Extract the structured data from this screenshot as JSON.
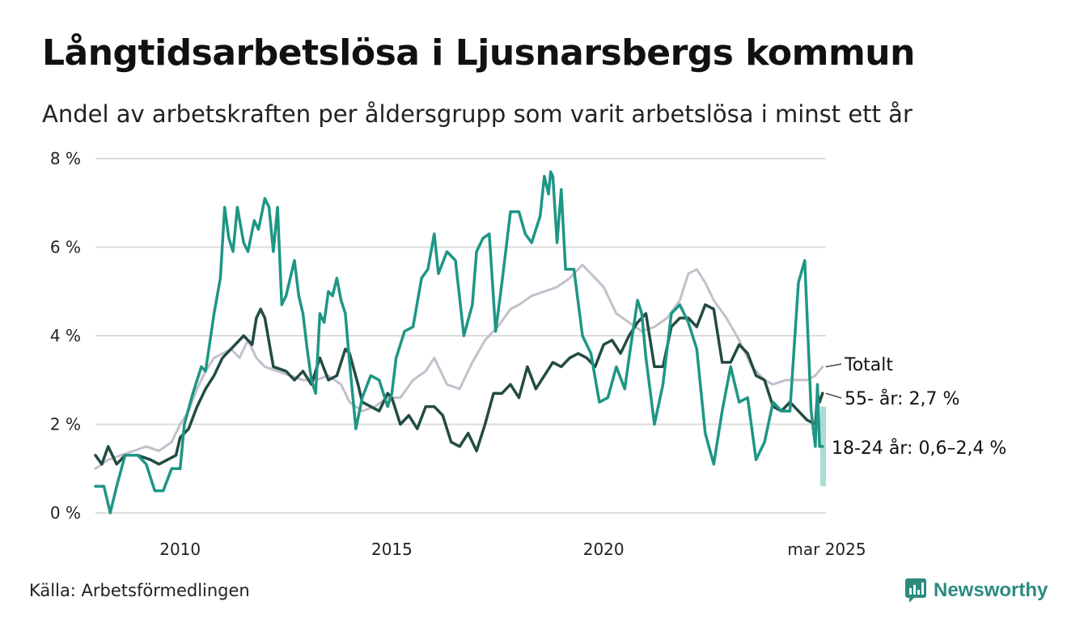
{
  "title": "Långtidsarbetslösa i Ljusnarsbergs kommun",
  "subtitle": "Andel av arbetskraften per åldersgrupp som varit arbetslösa i minst ett år",
  "source": "Källa: Arbetsförmedlingen",
  "brand": "Newsworthy",
  "colors": {
    "totalt": "#c4bfcc",
    "age55": "#234b43",
    "age18_24": "#1e9684",
    "band": "#8fd1c6",
    "grid": "#dcdcdc",
    "brand": "#2d8a7f"
  },
  "chart_data": {
    "type": "line",
    "title": "Långtidsarbetslösa i Ljusnarsbergs kommun",
    "ylabel": "",
    "ylim": [
      0,
      8
    ],
    "yticks": [
      0,
      2,
      4,
      6,
      8
    ],
    "ytick_labels": [
      "0 %",
      "2 %",
      "4 %",
      "6 %",
      "8 %"
    ],
    "xlim": [
      2008.0,
      2025.25
    ],
    "xticks": [
      2010,
      2015,
      2020,
      2025.17
    ],
    "xtick_labels": [
      "2010",
      "2015",
      "2020",
      "mar 2025"
    ],
    "grid": true,
    "legend": "end-labels",
    "series": [
      {
        "name": "Totalt",
        "label": "Totalt",
        "color_key": "totalt",
        "points": [
          [
            2008.0,
            1.0
          ],
          [
            2008.3,
            1.2
          ],
          [
            2008.6,
            1.3
          ],
          [
            2008.9,
            1.4
          ],
          [
            2009.2,
            1.5
          ],
          [
            2009.5,
            1.4
          ],
          [
            2009.8,
            1.6
          ],
          [
            2010.0,
            2.0
          ],
          [
            2010.2,
            2.3
          ],
          [
            2010.4,
            2.8
          ],
          [
            2010.6,
            3.2
          ],
          [
            2010.8,
            3.5
          ],
          [
            2011.0,
            3.6
          ],
          [
            2011.2,
            3.7
          ],
          [
            2011.4,
            3.5
          ],
          [
            2011.6,
            3.9
          ],
          [
            2011.8,
            3.5
          ],
          [
            2012.0,
            3.3
          ],
          [
            2012.3,
            3.2
          ],
          [
            2012.6,
            3.1
          ],
          [
            2012.9,
            3.0
          ],
          [
            2013.2,
            3.0
          ],
          [
            2013.5,
            3.1
          ],
          [
            2013.8,
            2.9
          ],
          [
            2014.0,
            2.5
          ],
          [
            2014.3,
            2.3
          ],
          [
            2014.6,
            2.4
          ],
          [
            2014.9,
            2.6
          ],
          [
            2015.2,
            2.6
          ],
          [
            2015.5,
            3.0
          ],
          [
            2015.8,
            3.2
          ],
          [
            2016.0,
            3.5
          ],
          [
            2016.3,
            2.9
          ],
          [
            2016.6,
            2.8
          ],
          [
            2016.9,
            3.4
          ],
          [
            2017.2,
            3.9
          ],
          [
            2017.5,
            4.2
          ],
          [
            2017.8,
            4.6
          ],
          [
            2018.0,
            4.7
          ],
          [
            2018.3,
            4.9
          ],
          [
            2018.6,
            5.0
          ],
          [
            2018.9,
            5.1
          ],
          [
            2019.2,
            5.3
          ],
          [
            2019.5,
            5.6
          ],
          [
            2019.8,
            5.3
          ],
          [
            2020.0,
            5.1
          ],
          [
            2020.3,
            4.5
          ],
          [
            2020.6,
            4.3
          ],
          [
            2020.9,
            4.1
          ],
          [
            2021.2,
            4.2
          ],
          [
            2021.5,
            4.4
          ],
          [
            2021.8,
            4.8
          ],
          [
            2022.0,
            5.4
          ],
          [
            2022.2,
            5.5
          ],
          [
            2022.4,
            5.2
          ],
          [
            2022.6,
            4.8
          ],
          [
            2022.9,
            4.4
          ],
          [
            2023.2,
            3.9
          ],
          [
            2023.5,
            3.3
          ],
          [
            2023.8,
            3.0
          ],
          [
            2024.0,
            2.9
          ],
          [
            2024.3,
            3.0
          ],
          [
            2024.6,
            3.0
          ],
          [
            2024.8,
            3.0
          ],
          [
            2025.0,
            3.1
          ],
          [
            2025.17,
            3.3
          ]
        ]
      },
      {
        "name": "55- år",
        "label": "55- år: 2,7 %",
        "color_key": "age55",
        "points": [
          [
            2008.0,
            1.3
          ],
          [
            2008.15,
            1.1
          ],
          [
            2008.3,
            1.5
          ],
          [
            2008.5,
            1.1
          ],
          [
            2008.7,
            1.3
          ],
          [
            2009.0,
            1.3
          ],
          [
            2009.3,
            1.2
          ],
          [
            2009.5,
            1.1
          ],
          [
            2009.7,
            1.2
          ],
          [
            2009.9,
            1.3
          ],
          [
            2010.0,
            1.7
          ],
          [
            2010.2,
            1.9
          ],
          [
            2010.4,
            2.4
          ],
          [
            2010.6,
            2.8
          ],
          [
            2010.8,
            3.1
          ],
          [
            2011.0,
            3.5
          ],
          [
            2011.2,
            3.7
          ],
          [
            2011.4,
            3.9
          ],
          [
            2011.5,
            4.0
          ],
          [
            2011.7,
            3.8
          ],
          [
            2011.8,
            4.4
          ],
          [
            2011.9,
            4.6
          ],
          [
            2012.0,
            4.4
          ],
          [
            2012.2,
            3.3
          ],
          [
            2012.5,
            3.2
          ],
          [
            2012.7,
            3.0
          ],
          [
            2012.9,
            3.2
          ],
          [
            2013.1,
            2.9
          ],
          [
            2013.3,
            3.5
          ],
          [
            2013.5,
            3.0
          ],
          [
            2013.7,
            3.1
          ],
          [
            2013.9,
            3.7
          ],
          [
            2014.0,
            3.6
          ],
          [
            2014.2,
            2.9
          ],
          [
            2014.3,
            2.5
          ],
          [
            2014.5,
            2.4
          ],
          [
            2014.7,
            2.3
          ],
          [
            2014.9,
            2.7
          ],
          [
            2015.0,
            2.6
          ],
          [
            2015.2,
            2.0
          ],
          [
            2015.4,
            2.2
          ],
          [
            2015.6,
            1.9
          ],
          [
            2015.8,
            2.4
          ],
          [
            2016.0,
            2.4
          ],
          [
            2016.2,
            2.2
          ],
          [
            2016.4,
            1.6
          ],
          [
            2016.6,
            1.5
          ],
          [
            2016.8,
            1.8
          ],
          [
            2017.0,
            1.4
          ],
          [
            2017.2,
            2.0
          ],
          [
            2017.4,
            2.7
          ],
          [
            2017.6,
            2.7
          ],
          [
            2017.8,
            2.9
          ],
          [
            2018.0,
            2.6
          ],
          [
            2018.2,
            3.3
          ],
          [
            2018.4,
            2.8
          ],
          [
            2018.6,
            3.1
          ],
          [
            2018.8,
            3.4
          ],
          [
            2019.0,
            3.3
          ],
          [
            2019.2,
            3.5
          ],
          [
            2019.4,
            3.6
          ],
          [
            2019.6,
            3.5
          ],
          [
            2019.8,
            3.3
          ],
          [
            2020.0,
            3.8
          ],
          [
            2020.2,
            3.9
          ],
          [
            2020.4,
            3.6
          ],
          [
            2020.6,
            4.0
          ],
          [
            2020.8,
            4.3
          ],
          [
            2021.0,
            4.5
          ],
          [
            2021.2,
            3.3
          ],
          [
            2021.4,
            3.3
          ],
          [
            2021.6,
            4.2
          ],
          [
            2021.8,
            4.4
          ],
          [
            2022.0,
            4.4
          ],
          [
            2022.2,
            4.2
          ],
          [
            2022.4,
            4.7
          ],
          [
            2022.6,
            4.6
          ],
          [
            2022.8,
            3.4
          ],
          [
            2023.0,
            3.4
          ],
          [
            2023.2,
            3.8
          ],
          [
            2023.4,
            3.6
          ],
          [
            2023.6,
            3.1
          ],
          [
            2023.8,
            3.0
          ],
          [
            2024.0,
            2.4
          ],
          [
            2024.2,
            2.3
          ],
          [
            2024.4,
            2.5
          ],
          [
            2024.6,
            2.3
          ],
          [
            2024.8,
            2.1
          ],
          [
            2025.0,
            2.0
          ],
          [
            2025.05,
            2.7
          ],
          [
            2025.1,
            2.5
          ],
          [
            2025.17,
            2.7
          ]
        ]
      },
      {
        "name": "18-24 år",
        "label": "18-24 år: 0,6–2,4 %",
        "color_key": "age18_24",
        "points": [
          [
            2008.0,
            0.6
          ],
          [
            2008.2,
            0.6
          ],
          [
            2008.35,
            0.0
          ],
          [
            2008.5,
            0.6
          ],
          [
            2008.7,
            1.3
          ],
          [
            2009.0,
            1.3
          ],
          [
            2009.2,
            1.1
          ],
          [
            2009.4,
            0.5
          ],
          [
            2009.6,
            0.5
          ],
          [
            2009.8,
            1.0
          ],
          [
            2010.0,
            1.0
          ],
          [
            2010.1,
            2.0
          ],
          [
            2010.3,
            2.7
          ],
          [
            2010.5,
            3.3
          ],
          [
            2010.6,
            3.2
          ],
          [
            2010.8,
            4.5
          ],
          [
            2010.95,
            5.3
          ],
          [
            2011.05,
            6.9
          ],
          [
            2011.15,
            6.2
          ],
          [
            2011.25,
            5.9
          ],
          [
            2011.35,
            6.9
          ],
          [
            2011.5,
            6.1
          ],
          [
            2011.6,
            5.9
          ],
          [
            2011.75,
            6.6
          ],
          [
            2011.85,
            6.4
          ],
          [
            2012.0,
            7.1
          ],
          [
            2012.1,
            6.9
          ],
          [
            2012.2,
            5.9
          ],
          [
            2012.3,
            6.9
          ],
          [
            2012.4,
            4.7
          ],
          [
            2012.5,
            4.9
          ],
          [
            2012.6,
            5.3
          ],
          [
            2012.7,
            5.7
          ],
          [
            2012.8,
            4.9
          ],
          [
            2012.9,
            4.5
          ],
          [
            2013.0,
            3.7
          ],
          [
            2013.1,
            3.0
          ],
          [
            2013.2,
            2.7
          ],
          [
            2013.3,
            4.5
          ],
          [
            2013.4,
            4.3
          ],
          [
            2013.5,
            5.0
          ],
          [
            2013.6,
            4.9
          ],
          [
            2013.7,
            5.3
          ],
          [
            2013.8,
            4.8
          ],
          [
            2013.9,
            4.5
          ],
          [
            2014.0,
            3.4
          ],
          [
            2014.15,
            1.9
          ],
          [
            2014.3,
            2.6
          ],
          [
            2014.5,
            3.1
          ],
          [
            2014.7,
            3.0
          ],
          [
            2014.9,
            2.4
          ],
          [
            2015.0,
            2.7
          ],
          [
            2015.1,
            3.5
          ],
          [
            2015.3,
            4.1
          ],
          [
            2015.5,
            4.2
          ],
          [
            2015.7,
            5.3
          ],
          [
            2015.85,
            5.5
          ],
          [
            2016.0,
            6.3
          ],
          [
            2016.1,
            5.4
          ],
          [
            2016.3,
            5.9
          ],
          [
            2016.5,
            5.7
          ],
          [
            2016.7,
            4.0
          ],
          [
            2016.9,
            4.7
          ],
          [
            2017.0,
            5.9
          ],
          [
            2017.15,
            6.2
          ],
          [
            2017.3,
            6.3
          ],
          [
            2017.45,
            4.1
          ],
          [
            2017.6,
            5.2
          ],
          [
            2017.8,
            6.8
          ],
          [
            2018.0,
            6.8
          ],
          [
            2018.15,
            6.3
          ],
          [
            2018.3,
            6.1
          ],
          [
            2018.5,
            6.7
          ],
          [
            2018.6,
            7.6
          ],
          [
            2018.7,
            7.2
          ],
          [
            2018.75,
            7.7
          ],
          [
            2018.8,
            7.6
          ],
          [
            2018.9,
            6.1
          ],
          [
            2019.0,
            7.3
          ],
          [
            2019.1,
            5.5
          ],
          [
            2019.3,
            5.5
          ],
          [
            2019.5,
            4.0
          ],
          [
            2019.7,
            3.6
          ],
          [
            2019.9,
            2.5
          ],
          [
            2020.1,
            2.6
          ],
          [
            2020.3,
            3.3
          ],
          [
            2020.5,
            2.8
          ],
          [
            2020.6,
            3.5
          ],
          [
            2020.8,
            4.8
          ],
          [
            2020.9,
            4.5
          ],
          [
            2021.0,
            3.5
          ],
          [
            2021.2,
            2.0
          ],
          [
            2021.4,
            2.9
          ],
          [
            2021.6,
            4.5
          ],
          [
            2021.8,
            4.7
          ],
          [
            2022.0,
            4.3
          ],
          [
            2022.2,
            3.7
          ],
          [
            2022.4,
            1.8
          ],
          [
            2022.6,
            1.1
          ],
          [
            2022.8,
            2.3
          ],
          [
            2023.0,
            3.3
          ],
          [
            2023.2,
            2.5
          ],
          [
            2023.4,
            2.6
          ],
          [
            2023.6,
            1.2
          ],
          [
            2023.8,
            1.6
          ],
          [
            2024.0,
            2.5
          ],
          [
            2024.2,
            2.3
          ],
          [
            2024.4,
            2.3
          ],
          [
            2024.6,
            5.2
          ],
          [
            2024.75,
            5.7
          ],
          [
            2024.9,
            2.3
          ],
          [
            2025.0,
            1.5
          ],
          [
            2025.05,
            2.9
          ],
          [
            2025.1,
            1.5
          ],
          [
            2025.17,
            1.5
          ]
        ],
        "range": {
          "x_start": 2025.0,
          "x_end": 2025.25,
          "low": 0.6,
          "high": 2.4
        }
      }
    ]
  }
}
